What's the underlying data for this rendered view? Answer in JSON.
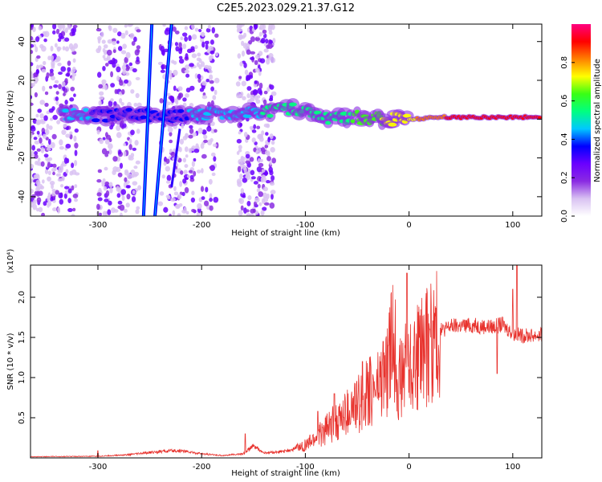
{
  "title": "C2E5.2023.029.21.37.G12",
  "chart_data": [
    {
      "type": "heatmap",
      "xlabel": "Height of straight line (km)",
      "ylabel": "Frequency (Hz)",
      "xlim": [
        -365,
        128
      ],
      "ylim": [
        -50,
        49
      ],
      "xticks": [
        -300,
        -200,
        -100,
        0,
        100
      ],
      "yticks": [
        -40,
        -20,
        0,
        20,
        40
      ],
      "grid": false,
      "colorbar": {
        "label": "Normalized spectral amplitude",
        "range": [
          0.0,
          1.0
        ],
        "ticks": [
          0.0,
          0.2,
          0.4,
          0.6,
          0.8
        ],
        "colors": [
          "#ffffff",
          "#d9c2f2",
          "#8a2be2",
          "#6a00ff",
          "#0000ff",
          "#00c8ff",
          "#00ff80",
          "#39ff14",
          "#ffff00",
          "#ff8000",
          "#ff0000",
          "#ff0080"
        ]
      },
      "features": {
        "line_a": {
          "x_at_top": -248,
          "x_at_bottom": -256
        },
        "line_b": {
          "x_at_top": -229,
          "x_at_bottom": -245
        },
        "line_c": {
          "x_at_top": -221,
          "x_at_bottom": -229,
          "y_top": -5,
          "y_bottom": -35
        },
        "centre_band": [
          {
            "x": -335,
            "y": 3,
            "amp": 0.45
          },
          {
            "x": -300,
            "y": 2,
            "amp": 0.4
          },
          {
            "x": -260,
            "y": 2,
            "amp": 0.4
          },
          {
            "x": -220,
            "y": 2,
            "amp": 0.4
          },
          {
            "x": -180,
            "y": 3,
            "amp": 0.45
          },
          {
            "x": -140,
            "y": 4,
            "amp": 0.5
          },
          {
            "x": -110,
            "y": 5,
            "amp": 0.5
          },
          {
            "x": -80,
            "y": 1,
            "amp": 0.55
          },
          {
            "x": -50,
            "y": 1,
            "amp": 0.6
          },
          {
            "x": -20,
            "y": 0,
            "amp": 0.7
          },
          {
            "x": 0,
            "y": 0,
            "amp": 0.75
          },
          {
            "x": 30,
            "y": 1,
            "amp": 0.85
          },
          {
            "x": 60,
            "y": 1,
            "amp": 0.95
          },
          {
            "x": 90,
            "y": 1,
            "amp": 0.95
          },
          {
            "x": 128,
            "y": 1,
            "amp": 0.95
          }
        ],
        "scatter_columns": [
          {
            "x0": -365,
            "x1": -320,
            "density": 1.0
          },
          {
            "x0": -300,
            "x1": -260,
            "density": 0.8
          },
          {
            "x0": -240,
            "x1": -185,
            "density": 1.0
          },
          {
            "x0": -165,
            "x1": -130,
            "density": 0.9
          }
        ]
      }
    },
    {
      "type": "line",
      "xlabel": "Height of straight line (km)",
      "ylabel": "SNR (10 * v/v)",
      "y_multiplier": "(x10⁴)",
      "xlim": [
        -365,
        128
      ],
      "ylim": [
        0,
        24000
      ],
      "xticks": [
        -300,
        -200,
        -100,
        0,
        100
      ],
      "yticks": [
        5000,
        10000,
        15000,
        20000
      ],
      "ytick_labels": [
        "0.5",
        "1.0",
        "1.5",
        "2.0"
      ],
      "color": "#e8332e",
      "grid": false,
      "series": [
        {
          "points": [
            [
              -365,
              150
            ],
            [
              -330,
              180
            ],
            [
              -300,
              200
            ],
            [
              -270,
              400
            ],
            [
              -240,
              800
            ],
            [
              -220,
              900
            ],
            [
              -200,
              500
            ],
            [
              -180,
              300
            ],
            [
              -160,
              500
            ],
            [
              -150,
              1500
            ],
            [
              -140,
              600
            ],
            [
              -120,
              800
            ],
            [
              -100,
              1500
            ],
            [
              -90,
              2500
            ],
            [
              -80,
              3500
            ],
            [
              -70,
              4500
            ],
            [
              -60,
              5500
            ],
            [
              -50,
              6500
            ],
            [
              -40,
              8000
            ],
            [
              -30,
              9000
            ],
            [
              -20,
              11000
            ],
            [
              -15,
              16000
            ],
            [
              -10,
              9500
            ],
            [
              -5,
              10500
            ],
            [
              0,
              11500
            ],
            [
              10,
              12500
            ],
            [
              20,
              14500
            ],
            [
              30,
              15800
            ],
            [
              40,
              16400
            ],
            [
              60,
              16500
            ],
            [
              80,
              16300
            ],
            [
              90,
              16600
            ],
            [
              100,
              15500
            ],
            [
              110,
              15200
            ],
            [
              128,
              15300
            ]
          ],
          "spikes": [
            [
              -300,
              900
            ],
            [
              -158,
              3000
            ],
            [
              -88,
              5800
            ],
            [
              -72,
              8000
            ],
            [
              -45,
              12000
            ],
            [
              -25,
              14500
            ],
            [
              -20,
              14000
            ],
            [
              -2,
              23000
            ],
            [
              10,
              15000
            ],
            [
              20,
              16000
            ],
            [
              85,
              10500
            ],
            [
              100,
              21000
            ],
            [
              104,
              24000
            ]
          ]
        }
      ]
    }
  ]
}
